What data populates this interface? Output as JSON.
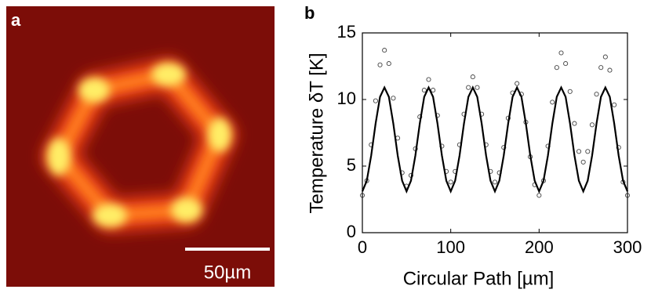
{
  "panel_a": {
    "label": "a",
    "scale_bar": "50µm"
  },
  "chart_data": {
    "type": "line",
    "panel_label": "b",
    "x_label": "Circular Path [µm]",
    "y_label": "Temperature δT [K]",
    "x": [
      0,
      5,
      10,
      15,
      20,
      25,
      30,
      35,
      40,
      45,
      50,
      55,
      60,
      65,
      70,
      75,
      80,
      85,
      90,
      95,
      100,
      105,
      110,
      115,
      120,
      125,
      130,
      135,
      140,
      145,
      150,
      155,
      160,
      165,
      170,
      175,
      180,
      185,
      190,
      195,
      200,
      205,
      210,
      215,
      220,
      225,
      230,
      235,
      240,
      245,
      250,
      255,
      260,
      265,
      270,
      275,
      280,
      285,
      290,
      295,
      300
    ],
    "series": [
      {
        "color": "#444444",
        "marker": "circle",
        "values": [
          2.8,
          3.9,
          6.6,
          9.9,
          12.6,
          13.7,
          12.7,
          10.1,
          7.1,
          4.5,
          3.5,
          4.3,
          6.3,
          8.7,
          10.7,
          11.5,
          10.7,
          8.8,
          6.5,
          4.6,
          3.8,
          4.6,
          6.6,
          8.9,
          10.9,
          11.7,
          10.9,
          8.9,
          6.6,
          4.6,
          3.8,
          4.5,
          6.4,
          8.6,
          10.5,
          11.2,
          10.4,
          8.3,
          5.7,
          3.6,
          2.8,
          3.9,
          6.5,
          9.8,
          12.4,
          13.5,
          12.7,
          10.6,
          8.2,
          6.1,
          5.3,
          6.1,
          8.1,
          10.4,
          12.4,
          13.2,
          12.2,
          9.6,
          6.4,
          3.8,
          2.8
        ]
      },
      {
        "color": "#000000",
        "values": [
          3.1,
          3.9,
          5.8,
          8.2,
          10.2,
          10.9,
          10.2,
          8.2,
          5.8,
          3.9,
          3.1,
          3.9,
          5.8,
          8.2,
          10.2,
          10.9,
          10.2,
          8.2,
          5.8,
          3.9,
          3.1,
          3.9,
          5.8,
          8.2,
          10.2,
          10.9,
          10.2,
          8.2,
          5.8,
          3.9,
          3.1,
          3.9,
          5.8,
          8.2,
          10.2,
          10.9,
          10.2,
          8.2,
          5.8,
          3.9,
          3.1,
          3.9,
          5.8,
          8.2,
          10.2,
          10.9,
          10.2,
          8.2,
          5.8,
          3.9,
          3.1,
          3.9,
          5.8,
          8.2,
          10.2,
          10.9,
          10.2,
          8.2,
          5.8,
          3.9,
          3.1
        ]
      }
    ],
    "xlim": [
      0,
      300
    ],
    "xticks": [
      0,
      100,
      200,
      300
    ],
    "ylim": [
      0,
      15
    ],
    "yticks": [
      0,
      5,
      10,
      15
    ]
  }
}
